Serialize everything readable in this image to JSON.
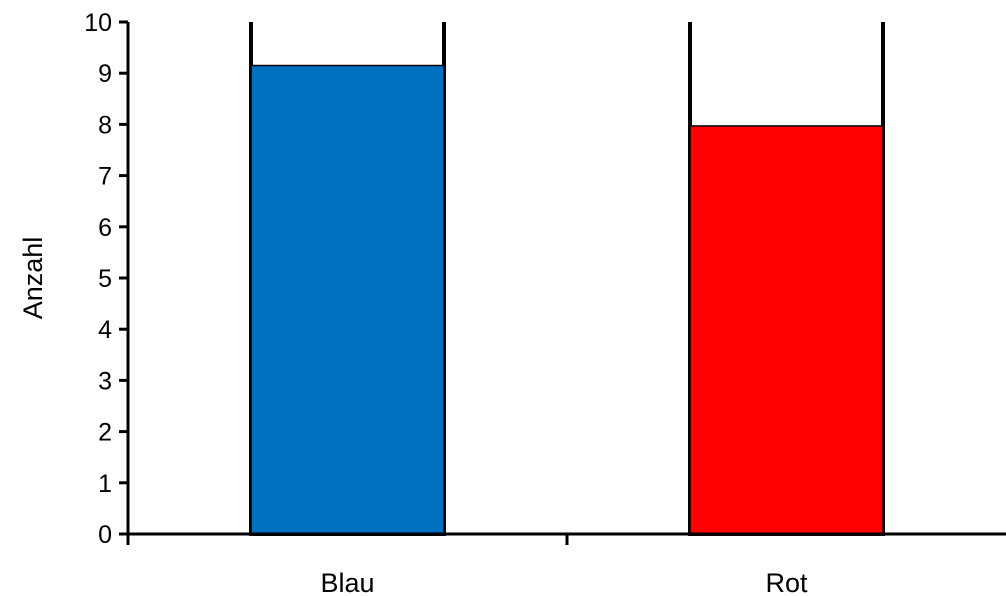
{
  "chart_data": {
    "type": "bar",
    "categories": [
      "Blau",
      "Rot"
    ],
    "values": [
      9.15,
      7.97
    ],
    "ylabel": "Anzahl",
    "xlabel": "",
    "ylim": [
      0,
      10
    ],
    "yticks": [
      "0",
      "1",
      "2",
      "3",
      "4",
      "5",
      "6",
      "7",
      "8",
      "9",
      "10"
    ],
    "grid": false,
    "legend": "none",
    "colors": [
      "#0070C0",
      "#FF0000"
    ],
    "container_capacity": 10
  }
}
